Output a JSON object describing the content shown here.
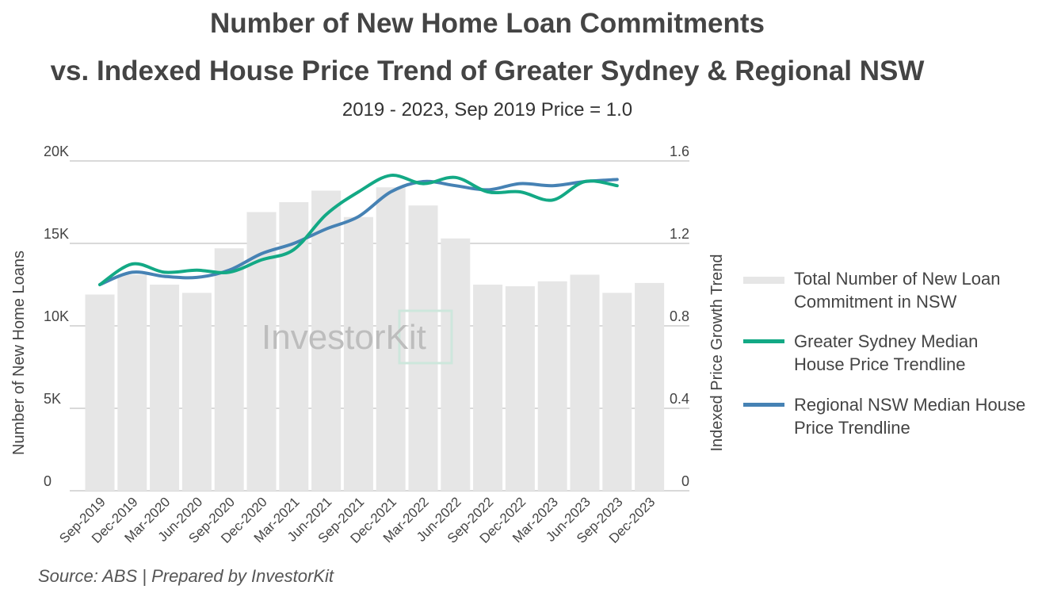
{
  "title_line1": "Number of New Home Loan Commitments",
  "title_line2": "vs. Indexed House Price Trend of Greater Sydney & Regional NSW",
  "subtitle": "2019 - 2023, Sep 2019 Price = 1.0",
  "source": "Source: ABS | Prepared by InvestorKit",
  "watermark": "InvestorKit",
  "chart_data": {
    "type": "bar+line",
    "categories": [
      "Sep-2019",
      "Dec-2019",
      "Mar-2020",
      "Jun-2020",
      "Sep-2020",
      "Dec-2020",
      "Mar-2021",
      "Jun-2021",
      "Sep-2021",
      "Dec-2021",
      "Mar-2022",
      "Jun-2022",
      "Sep-2022",
      "Dec-2022",
      "Mar-2023",
      "Jun-2023",
      "Sep-2023",
      "Dec-2023"
    ],
    "ylabel": "Number of New Home Loans",
    "y2label": "Indexed Price Growth Trend",
    "ylim": [
      0,
      20000
    ],
    "y2lim": [
      0,
      1.6
    ],
    "yticks": [
      "0",
      "5K",
      "10K",
      "15K",
      "20K"
    ],
    "y2ticks": [
      "0",
      "0.4",
      "0.8",
      "1.2",
      "1.6"
    ],
    "grid": true,
    "legend_position": "right",
    "series": [
      {
        "name": "Total Number of New Loan Commitment in NSW",
        "type": "bar",
        "axis": "left",
        "color": "#e6e6e6",
        "values": [
          11900,
          13100,
          12500,
          12000,
          14700,
          16900,
          17500,
          18200,
          16600,
          18400,
          17300,
          15300,
          12500,
          12400,
          12700,
          13100,
          12000,
          12600
        ]
      },
      {
        "name": "Greater Sydney Median House Price Trendline",
        "type": "line",
        "axis": "right",
        "color": "#13a985",
        "values": [
          1.0,
          1.1,
          1.06,
          1.07,
          1.06,
          1.12,
          1.17,
          1.34,
          1.45,
          1.53,
          1.49,
          1.52,
          1.45,
          1.45,
          1.41,
          1.5,
          1.48,
          null
        ]
      },
      {
        "name": "Regional NSW Median House Price Trendline",
        "type": "line",
        "axis": "right",
        "color": "#4682b4",
        "values": [
          1.0,
          1.06,
          1.04,
          1.035,
          1.07,
          1.15,
          1.2,
          1.27,
          1.33,
          1.45,
          1.5,
          1.48,
          1.46,
          1.49,
          1.48,
          1.5,
          1.51,
          null
        ]
      }
    ]
  },
  "legend": [
    {
      "line1": "Total Number of New Loan",
      "line2": "Commitment in NSW"
    },
    {
      "line1": "Greater Sydney Median",
      "line2": "House Price Trendline"
    },
    {
      "line1": "Regional NSW Median House",
      "line2": "Price Trendline"
    }
  ]
}
